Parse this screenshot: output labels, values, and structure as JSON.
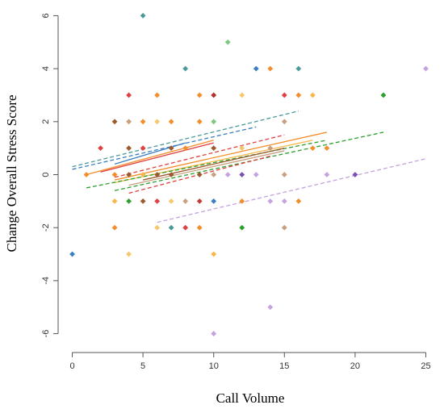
{
  "chart_data": {
    "type": "scatter",
    "xlabel": "Call Volume",
    "ylabel": "Change Overall Stress Score",
    "xlim": [
      -1,
      26
    ],
    "ylim": [
      -6.5,
      6.5
    ],
    "xticks": [
      0,
      5,
      10,
      15,
      20,
      25
    ],
    "yticks": [
      -6,
      -4,
      -2,
      0,
      2,
      4,
      6
    ],
    "grid": false,
    "box": "open",
    "points": [
      {
        "x": 0,
        "y": -3,
        "color": "#3a7fbf"
      },
      {
        "x": 1,
        "y": 0,
        "color": "#f28e2b"
      },
      {
        "x": 2,
        "y": 1,
        "color": "#e04040"
      },
      {
        "x": 3,
        "y": 2,
        "color": "#9c5b2e"
      },
      {
        "x": 3,
        "y": 0,
        "color": "#f28e2b"
      },
      {
        "x": 3,
        "y": -1,
        "color": "#f7b84b"
      },
      {
        "x": 3,
        "y": -2,
        "color": "#f28e2b"
      },
      {
        "x": 4,
        "y": 3,
        "color": "#e04040"
      },
      {
        "x": 4,
        "y": 2,
        "color": "#c8a080"
      },
      {
        "x": 4,
        "y": 1,
        "color": "#9c5b2e"
      },
      {
        "x": 4,
        "y": 0,
        "color": "#9c5b2e"
      },
      {
        "x": 4,
        "y": -1,
        "color": "#2ca02c"
      },
      {
        "x": 4,
        "y": -3,
        "color": "#f7c86b"
      },
      {
        "x": 5,
        "y": 6,
        "color": "#4a9a9a"
      },
      {
        "x": 5,
        "y": 2,
        "color": "#f28e2b"
      },
      {
        "x": 5,
        "y": 1,
        "color": "#e04040"
      },
      {
        "x": 5,
        "y": 0,
        "color": "#f7b84b"
      },
      {
        "x": 5,
        "y": -1,
        "color": "#9c5b2e"
      },
      {
        "x": 6,
        "y": 3,
        "color": "#f28e2b"
      },
      {
        "x": 6,
        "y": 2,
        "color": "#f7c86b"
      },
      {
        "x": 6,
        "y": 0,
        "color": "#9c5b2e"
      },
      {
        "x": 6,
        "y": -1,
        "color": "#e04040"
      },
      {
        "x": 6,
        "y": -2,
        "color": "#f7c86b"
      },
      {
        "x": 7,
        "y": 2,
        "color": "#f28e2b"
      },
      {
        "x": 7,
        "y": 1,
        "color": "#9c5b2e"
      },
      {
        "x": 7,
        "y": 0,
        "color": "#9c5b2e"
      },
      {
        "x": 7,
        "y": -1,
        "color": "#f7c86b"
      },
      {
        "x": 7,
        "y": -2,
        "color": "#4a9a9a"
      },
      {
        "x": 8,
        "y": 4,
        "color": "#4a9a9a"
      },
      {
        "x": 8,
        "y": 1,
        "color": "#f28e2b"
      },
      {
        "x": 8,
        "y": -1,
        "color": "#c8a080"
      },
      {
        "x": 8,
        "y": -2,
        "color": "#e04040"
      },
      {
        "x": 9,
        "y": 3,
        "color": "#f28e2b"
      },
      {
        "x": 9,
        "y": 2,
        "color": "#f28e2b"
      },
      {
        "x": 9,
        "y": 0,
        "color": "#9c5b2e"
      },
      {
        "x": 9,
        "y": -1,
        "color": "#c23b3b"
      },
      {
        "x": 9,
        "y": -2,
        "color": "#f28e2b"
      },
      {
        "x": 10,
        "y": 3,
        "color": "#b5302a"
      },
      {
        "x": 10,
        "y": 2,
        "color": "#7fc97f"
      },
      {
        "x": 10,
        "y": 1,
        "color": "#9c5b2e"
      },
      {
        "x": 10,
        "y": 0,
        "color": "#c8a080"
      },
      {
        "x": 10,
        "y": -1,
        "color": "#3a7fbf"
      },
      {
        "x": 10,
        "y": -3,
        "color": "#f7b84b"
      },
      {
        "x": 10,
        "y": -6,
        "color": "#c5a3e0"
      },
      {
        "x": 11,
        "y": 5,
        "color": "#7fc97f"
      },
      {
        "x": 11,
        "y": 0,
        "color": "#c5a3e0"
      },
      {
        "x": 12,
        "y": 3,
        "color": "#f7c86b"
      },
      {
        "x": 12,
        "y": 1,
        "color": "#f7c86b"
      },
      {
        "x": 12,
        "y": 0,
        "color": "#7b4fb5"
      },
      {
        "x": 12,
        "y": -1,
        "color": "#f28e2b"
      },
      {
        "x": 12,
        "y": -2,
        "color": "#2ca02c"
      },
      {
        "x": 13,
        "y": 4,
        "color": "#3a7fbf"
      },
      {
        "x": 13,
        "y": 0,
        "color": "#c5a3e0"
      },
      {
        "x": 14,
        "y": 4,
        "color": "#f28e2b"
      },
      {
        "x": 14,
        "y": 1,
        "color": "#c8a080"
      },
      {
        "x": 14,
        "y": -1,
        "color": "#c5a3e0"
      },
      {
        "x": 14,
        "y": -5,
        "color": "#c5a3e0"
      },
      {
        "x": 15,
        "y": 3,
        "color": "#e04040"
      },
      {
        "x": 15,
        "y": 2,
        "color": "#c8a080"
      },
      {
        "x": 15,
        "y": 0,
        "color": "#c8a080"
      },
      {
        "x": 15,
        "y": -1,
        "color": "#c5a3e0"
      },
      {
        "x": 15,
        "y": -2,
        "color": "#c8a080"
      },
      {
        "x": 16,
        "y": 4,
        "color": "#4a9a9a"
      },
      {
        "x": 16,
        "y": 3,
        "color": "#f28e2b"
      },
      {
        "x": 16,
        "y": -1,
        "color": "#f28e2b"
      },
      {
        "x": 17,
        "y": 3,
        "color": "#f7b84b"
      },
      {
        "x": 17,
        "y": 1,
        "color": "#f28e2b"
      },
      {
        "x": 18,
        "y": 1,
        "color": "#f28e2b"
      },
      {
        "x": 18,
        "y": 0,
        "color": "#c5a3e0"
      },
      {
        "x": 20,
        "y": 0,
        "color": "#7b4fb5"
      },
      {
        "x": 22,
        "y": 3,
        "color": "#2ca02c"
      },
      {
        "x": 25,
        "y": 4,
        "color": "#c5a3e0"
      }
    ],
    "fit_lines": [
      {
        "x": [
          0,
          13
        ],
        "y": [
          0.2,
          1.8
        ],
        "color": "#3a7fbf",
        "dashed": true
      },
      {
        "x": [
          0,
          16
        ],
        "y": [
          0.3,
          2.4
        ],
        "color": "#4a9a9a",
        "dashed": true
      },
      {
        "x": [
          1,
          10
        ],
        "y": [
          0.0,
          1.3
        ],
        "color": "#f28e2b",
        "dashed": false
      },
      {
        "x": [
          2,
          10
        ],
        "y": [
          0.1,
          1.2
        ],
        "color": "#e04040",
        "dashed": false
      },
      {
        "x": [
          3,
          8
        ],
        "y": [
          0.4,
          1.2
        ],
        "color": "#3a7fbf",
        "dashed": false
      },
      {
        "x": [
          3,
          15
        ],
        "y": [
          -0.1,
          1.5
        ],
        "color": "#e04040",
        "dashed": true
      },
      {
        "x": [
          3,
          18
        ],
        "y": [
          -0.2,
          1.6
        ],
        "color": "#f28e2b",
        "dashed": false
      },
      {
        "x": [
          3,
          17
        ],
        "y": [
          -0.3,
          1.3
        ],
        "color": "#f7b84b",
        "dashed": false
      },
      {
        "x": [
          1,
          18
        ],
        "y": [
          -0.5,
          1.3
        ],
        "color": "#2ca02c",
        "dashed": true
      },
      {
        "x": [
          4,
          15
        ],
        "y": [
          -0.4,
          0.9
        ],
        "color": "#c8a080",
        "dashed": false
      },
      {
        "x": [
          5,
          15
        ],
        "y": [
          -0.2,
          1.0
        ],
        "color": "#9c5b2e",
        "dashed": false
      },
      {
        "x": [
          3,
          22
        ],
        "y": [
          -0.6,
          1.6
        ],
        "color": "#2ca02c",
        "dashed": true
      },
      {
        "x": [
          4,
          14
        ],
        "y": [
          -0.7,
          0.7
        ],
        "color": "#e04040",
        "dashed": true
      },
      {
        "x": [
          6,
          25
        ],
        "y": [
          -1.8,
          0.6
        ],
        "color": "#c5a3e0",
        "dashed": true
      }
    ]
  }
}
